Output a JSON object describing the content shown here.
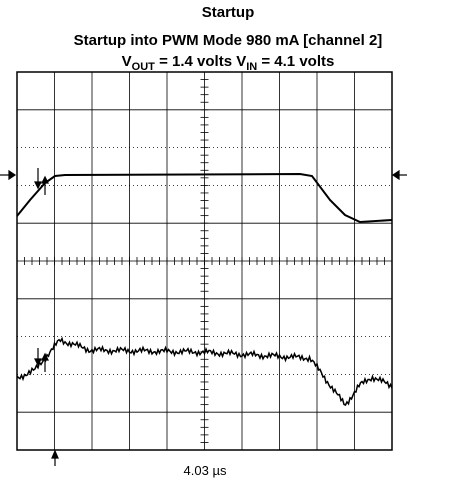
{
  "title": "Startup",
  "subtitle": "Startup into PWM Mode 980 mA [channel 2]",
  "conditions": {
    "parts": [
      "V",
      "OUT",
      " = 1.4 volts V",
      "IN",
      " = 4.1 volts"
    ]
  },
  "annotation": "4.03 µs"
}
